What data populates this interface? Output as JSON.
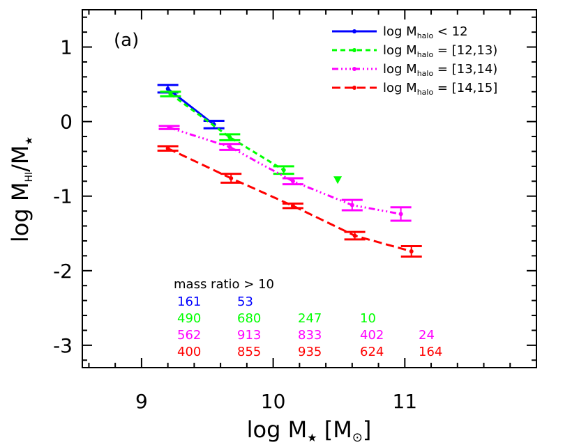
{
  "chart_data": {
    "type": "line",
    "panel_label": "(a)",
    "xlabel": {
      "main": "log M",
      "sub": "★",
      "unit": " [M",
      "unit_sub": "⊙",
      "close": "]"
    },
    "ylabel": {
      "main": "log M",
      "sub1": "HI",
      "slash": "/M",
      "sub2": "★"
    },
    "xlim": [
      8.55,
      12.0
    ],
    "ylim": [
      -3.3,
      1.5
    ],
    "x_ticks": [
      "9",
      "10",
      "11"
    ],
    "y_ticks": [
      "1",
      "0",
      "-1",
      "-2",
      "-3"
    ],
    "legend_position": "top-right",
    "grid": false,
    "series": [
      {
        "name": "log M_halo < 12",
        "label_main": "log M",
        "label_sub": "halo",
        "label_rest": " < 12",
        "color": "#0000ff",
        "dash": "",
        "x": [
          9.2,
          9.55
        ],
        "y": [
          0.44,
          -0.04
        ],
        "err": [
          0.05,
          0.05
        ],
        "upper_limits": []
      },
      {
        "name": "log M_halo = [12,13)",
        "label_main": "log M",
        "label_sub": "halo",
        "label_rest": " = [12,13)",
        "color": "#00ff00",
        "dash": "7,5",
        "x": [
          9.22,
          9.67,
          10.08
        ],
        "y": [
          0.37,
          -0.21,
          -0.65
        ],
        "err": [
          0.03,
          0.04,
          0.05
        ],
        "upper_limits": [
          {
            "x": 10.49,
            "y": -0.79
          }
        ]
      },
      {
        "name": "log M_halo = [13,14)",
        "label_main": "log M",
        "label_sub": "halo",
        "label_rest": " = [13,14)",
        "color": "#ff00ff",
        "dash": "9,4,2,4,2,4,2,4",
        "x": [
          9.21,
          9.67,
          10.15,
          10.6,
          10.97
        ],
        "y": [
          -0.08,
          -0.34,
          -0.8,
          -1.12,
          -1.24
        ],
        "err": [
          0.02,
          0.04,
          0.04,
          0.07,
          0.09
        ],
        "upper_limits": []
      },
      {
        "name": "log M_halo = [14,15]",
        "label_main": "log M",
        "label_sub": "halo",
        "label_rest": " = [14,15]",
        "color": "#ff0000",
        "dash": "12,6",
        "x": [
          9.2,
          9.68,
          10.15,
          10.62,
          11.05
        ],
        "y": [
          -0.36,
          -0.76,
          -1.13,
          -1.53,
          -1.74
        ],
        "err": [
          0.03,
          0.06,
          0.03,
          0.05,
          0.07
        ],
        "upper_limits": []
      }
    ],
    "annotation_title": "mass ratio > 10",
    "counts": [
      {
        "color": "#0000ff",
        "values": [
          "161",
          "53"
        ]
      },
      {
        "color": "#00ff00",
        "values": [
          "490",
          "680",
          "247",
          "10"
        ]
      },
      {
        "color": "#ff00ff",
        "values": [
          "562",
          "913",
          "833",
          "402",
          "24"
        ]
      },
      {
        "color": "#ff0000",
        "values": [
          "400",
          "855",
          "935",
          "624",
          "164"
        ]
      }
    ]
  }
}
